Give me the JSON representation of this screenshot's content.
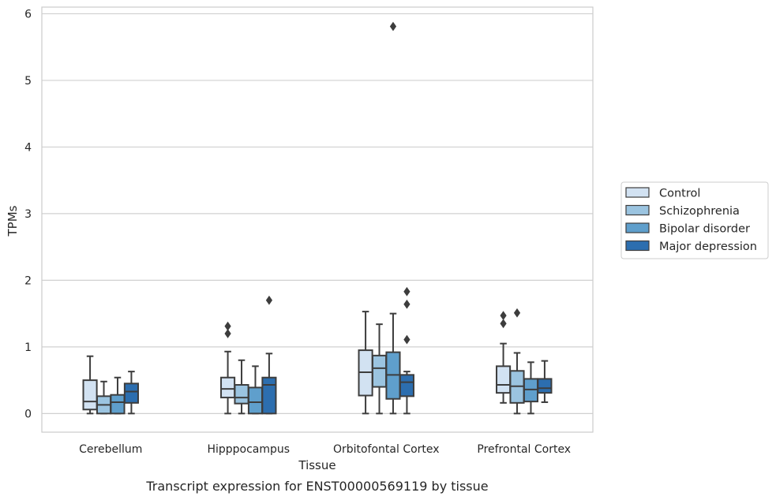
{
  "chart_data": {
    "type": "box",
    "title": "Transcript expression for ENST00000569119 by tissue",
    "xlabel": "Tissue",
    "ylabel": "TPMs",
    "ylim": [
      -0.28,
      6.1
    ],
    "yticks": [
      0,
      1,
      2,
      3,
      4,
      5,
      6
    ],
    "grid": true,
    "legend_position": "right",
    "categories": [
      "Cerebellum",
      "Hipppocampus",
      "Orbitofontal Cortex",
      "Prefrontal Cortex"
    ],
    "series": [
      {
        "name": "Control",
        "color": "#d2e2f2",
        "boxes": [
          {
            "min": 0.0,
            "q1": 0.06,
            "median": 0.18,
            "q3": 0.5,
            "max": 0.86,
            "outliers": []
          },
          {
            "min": 0.0,
            "q1": 0.24,
            "median": 0.37,
            "q3": 0.54,
            "max": 0.93,
            "outliers": [
              1.2,
              1.31
            ]
          },
          {
            "min": 0.0,
            "q1": 0.27,
            "median": 0.62,
            "q3": 0.95,
            "max": 1.53,
            "outliers": []
          },
          {
            "min": 0.16,
            "q1": 0.31,
            "median": 0.43,
            "q3": 0.71,
            "max": 1.05,
            "outliers": [
              1.35,
              1.47
            ]
          }
        ]
      },
      {
        "name": "Schizophrenia",
        "color": "#9bc4e0",
        "boxes": [
          {
            "min": 0.0,
            "q1": 0.0,
            "median": 0.13,
            "q3": 0.26,
            "max": 0.48,
            "outliers": []
          },
          {
            "min": 0.0,
            "q1": 0.15,
            "median": 0.24,
            "q3": 0.43,
            "max": 0.8,
            "outliers": []
          },
          {
            "min": 0.0,
            "q1": 0.4,
            "median": 0.68,
            "q3": 0.87,
            "max": 1.34,
            "outliers": []
          },
          {
            "min": 0.0,
            "q1": 0.16,
            "median": 0.41,
            "q3": 0.64,
            "max": 0.91,
            "outliers": [
              1.51
            ]
          }
        ]
      },
      {
        "name": "Bipolar disorder",
        "color": "#5f9fcc",
        "boxes": [
          {
            "min": 0.0,
            "q1": 0.0,
            "median": 0.17,
            "q3": 0.28,
            "max": 0.54,
            "outliers": []
          },
          {
            "min": 0.0,
            "q1": 0.0,
            "median": 0.17,
            "q3": 0.39,
            "max": 0.71,
            "outliers": []
          },
          {
            "min": 0.0,
            "q1": 0.22,
            "median": 0.58,
            "q3": 0.92,
            "max": 1.5,
            "outliers": [
              5.81
            ]
          },
          {
            "min": 0.0,
            "q1": 0.18,
            "median": 0.36,
            "q3": 0.52,
            "max": 0.77,
            "outliers": []
          }
        ]
      },
      {
        "name": "Major depression",
        "color": "#2c6eaf",
        "boxes": [
          {
            "min": 0.0,
            "q1": 0.16,
            "median": 0.33,
            "q3": 0.45,
            "max": 0.63,
            "outliers": []
          },
          {
            "min": 0.0,
            "q1": 0.0,
            "median": 0.43,
            "q3": 0.54,
            "max": 0.9,
            "outliers": [
              1.7
            ]
          },
          {
            "min": 0.0,
            "q1": 0.26,
            "median": 0.47,
            "q3": 0.58,
            "max": 0.63,
            "outliers": [
              1.11,
              1.64,
              1.83
            ]
          },
          {
            "min": 0.17,
            "q1": 0.31,
            "median": 0.38,
            "q3": 0.52,
            "max": 0.79,
            "outliers": []
          }
        ]
      }
    ]
  }
}
